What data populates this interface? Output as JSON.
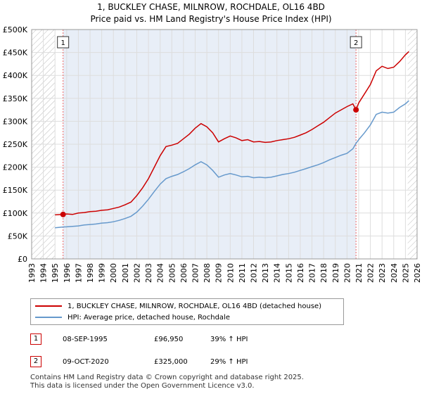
{
  "title": "1, BUCKLEY CHASE, MILNROW, ROCHDALE, OL16 4BD",
  "subtitle": "Price paid vs. HM Land Registry's House Price Index (HPI)",
  "colors": {
    "property": "#cc0000",
    "hpi": "#6699cc",
    "grid": "#dddddd",
    "shade": "#e8eef7",
    "marker_line": "#ee6666"
  },
  "chart_data": {
    "type": "line",
    "xlim": [
      1993,
      2026
    ],
    "ylim": [
      0,
      500000
    ],
    "x_ticks": [
      "1993",
      "1994",
      "1995",
      "1996",
      "1997",
      "1998",
      "1999",
      "2000",
      "2001",
      "2002",
      "2003",
      "2004",
      "2005",
      "2006",
      "2007",
      "2008",
      "2009",
      "2010",
      "2011",
      "2012",
      "2013",
      "2014",
      "2015",
      "2016",
      "2017",
      "2018",
      "2019",
      "2020",
      "2021",
      "2022",
      "2023",
      "2024",
      "2025",
      "2026"
    ],
    "y_ticks": [
      "£0",
      "£50K",
      "£100K",
      "£150K",
      "£200K",
      "£250K",
      "£300K",
      "£350K",
      "£400K",
      "£450K",
      "£500K"
    ],
    "grid": true,
    "hatched_ranges": [
      [
        1993,
        1995.0
      ],
      [
        2025.2,
        2026
      ]
    ],
    "series": [
      {
        "name": "1, BUCKLEY CHASE, MILNROW, ROCHDALE, OL16 4BD (detached house)",
        "color": "#cc0000",
        "points": [
          [
            1995.0,
            96000
          ],
          [
            1995.69,
            96950
          ],
          [
            1996.0,
            98000
          ],
          [
            1996.5,
            97000
          ],
          [
            1997.0,
            100000
          ],
          [
            1997.5,
            101000
          ],
          [
            1998.0,
            103000
          ],
          [
            1998.5,
            104000
          ],
          [
            1999.0,
            106000
          ],
          [
            1999.5,
            107000
          ],
          [
            2000.0,
            110000
          ],
          [
            2000.5,
            113000
          ],
          [
            2001.0,
            118000
          ],
          [
            2001.5,
            124000
          ],
          [
            2002.0,
            138000
          ],
          [
            2002.5,
            155000
          ],
          [
            2003.0,
            175000
          ],
          [
            2003.5,
            200000
          ],
          [
            2004.0,
            225000
          ],
          [
            2004.5,
            245000
          ],
          [
            2005.0,
            248000
          ],
          [
            2005.5,
            252000
          ],
          [
            2006.0,
            262000
          ],
          [
            2006.5,
            272000
          ],
          [
            2007.0,
            285000
          ],
          [
            2007.5,
            295000
          ],
          [
            2008.0,
            288000
          ],
          [
            2008.5,
            275000
          ],
          [
            2009.0,
            255000
          ],
          [
            2009.5,
            262000
          ],
          [
            2010.0,
            268000
          ],
          [
            2010.5,
            264000
          ],
          [
            2011.0,
            258000
          ],
          [
            2011.5,
            260000
          ],
          [
            2012.0,
            255000
          ],
          [
            2012.5,
            256000
          ],
          [
            2013.0,
            254000
          ],
          [
            2013.5,
            255000
          ],
          [
            2014.0,
            258000
          ],
          [
            2014.5,
            260000
          ],
          [
            2015.0,
            262000
          ],
          [
            2015.5,
            265000
          ],
          [
            2016.0,
            270000
          ],
          [
            2016.5,
            275000
          ],
          [
            2017.0,
            282000
          ],
          [
            2017.5,
            290000
          ],
          [
            2018.0,
            298000
          ],
          [
            2018.5,
            308000
          ],
          [
            2019.0,
            318000
          ],
          [
            2019.5,
            325000
          ],
          [
            2020.0,
            332000
          ],
          [
            2020.5,
            338000
          ],
          [
            2020.77,
            325000
          ],
          [
            2021.0,
            340000
          ],
          [
            2021.5,
            360000
          ],
          [
            2022.0,
            380000
          ],
          [
            2022.5,
            410000
          ],
          [
            2023.0,
            420000
          ],
          [
            2023.5,
            415000
          ],
          [
            2024.0,
            418000
          ],
          [
            2024.5,
            430000
          ],
          [
            2025.0,
            445000
          ],
          [
            2025.3,
            452000
          ]
        ]
      },
      {
        "name": "HPI: Average price, detached house, Rochdale",
        "color": "#6699cc",
        "points": [
          [
            1995.0,
            68000
          ],
          [
            1995.69,
            69600
          ],
          [
            1996.0,
            70000
          ],
          [
            1996.5,
            71000
          ],
          [
            1997.0,
            72000
          ],
          [
            1997.5,
            74000
          ],
          [
            1998.0,
            75000
          ],
          [
            1998.5,
            76000
          ],
          [
            1999.0,
            78000
          ],
          [
            1999.5,
            79000
          ],
          [
            2000.0,
            81000
          ],
          [
            2000.5,
            84000
          ],
          [
            2001.0,
            88000
          ],
          [
            2001.5,
            93000
          ],
          [
            2002.0,
            102000
          ],
          [
            2002.5,
            115000
          ],
          [
            2003.0,
            130000
          ],
          [
            2003.5,
            147000
          ],
          [
            2004.0,
            163000
          ],
          [
            2004.5,
            175000
          ],
          [
            2005.0,
            180000
          ],
          [
            2005.5,
            184000
          ],
          [
            2006.0,
            190000
          ],
          [
            2006.5,
            197000
          ],
          [
            2007.0,
            205000
          ],
          [
            2007.5,
            212000
          ],
          [
            2008.0,
            205000
          ],
          [
            2008.5,
            193000
          ],
          [
            2009.0,
            178000
          ],
          [
            2009.5,
            183000
          ],
          [
            2010.0,
            186000
          ],
          [
            2010.5,
            183000
          ],
          [
            2011.0,
            179000
          ],
          [
            2011.5,
            180000
          ],
          [
            2012.0,
            177000
          ],
          [
            2012.5,
            178000
          ],
          [
            2013.0,
            177000
          ],
          [
            2013.5,
            178000
          ],
          [
            2014.0,
            181000
          ],
          [
            2014.5,
            184000
          ],
          [
            2015.0,
            186000
          ],
          [
            2015.5,
            189000
          ],
          [
            2016.0,
            193000
          ],
          [
            2016.5,
            197000
          ],
          [
            2017.0,
            201000
          ],
          [
            2017.5,
            205000
          ],
          [
            2018.0,
            210000
          ],
          [
            2018.5,
            216000
          ],
          [
            2019.0,
            221000
          ],
          [
            2019.5,
            226000
          ],
          [
            2020.0,
            230000
          ],
          [
            2020.5,
            240000
          ],
          [
            2020.77,
            252000
          ],
          [
            2021.0,
            260000
          ],
          [
            2021.5,
            275000
          ],
          [
            2022.0,
            292000
          ],
          [
            2022.5,
            315000
          ],
          [
            2023.0,
            320000
          ],
          [
            2023.5,
            318000
          ],
          [
            2024.0,
            320000
          ],
          [
            2024.5,
            330000
          ],
          [
            2025.0,
            338000
          ],
          [
            2025.3,
            345000
          ]
        ]
      }
    ],
    "sales": [
      {
        "label": "1",
        "x": 1995.69,
        "y": 96950
      },
      {
        "label": "2",
        "x": 2020.77,
        "y": 325000
      }
    ]
  },
  "legend": {
    "property": "1, BUCKLEY CHASE, MILNROW, ROCHDALE, OL16 4BD (detached house)",
    "hpi": "HPI: Average price, detached house, Rochdale"
  },
  "sales_table": [
    {
      "num": "1",
      "date": "08-SEP-1995",
      "price": "£96,950",
      "hpi": "39% ↑ HPI"
    },
    {
      "num": "2",
      "date": "09-OCT-2020",
      "price": "£325,000",
      "hpi": "29% ↑ HPI"
    }
  ],
  "footer": {
    "line1": "Contains HM Land Registry data © Crown copyright and database right 2025.",
    "line2": "This data is licensed under the Open Government Licence v3.0."
  }
}
